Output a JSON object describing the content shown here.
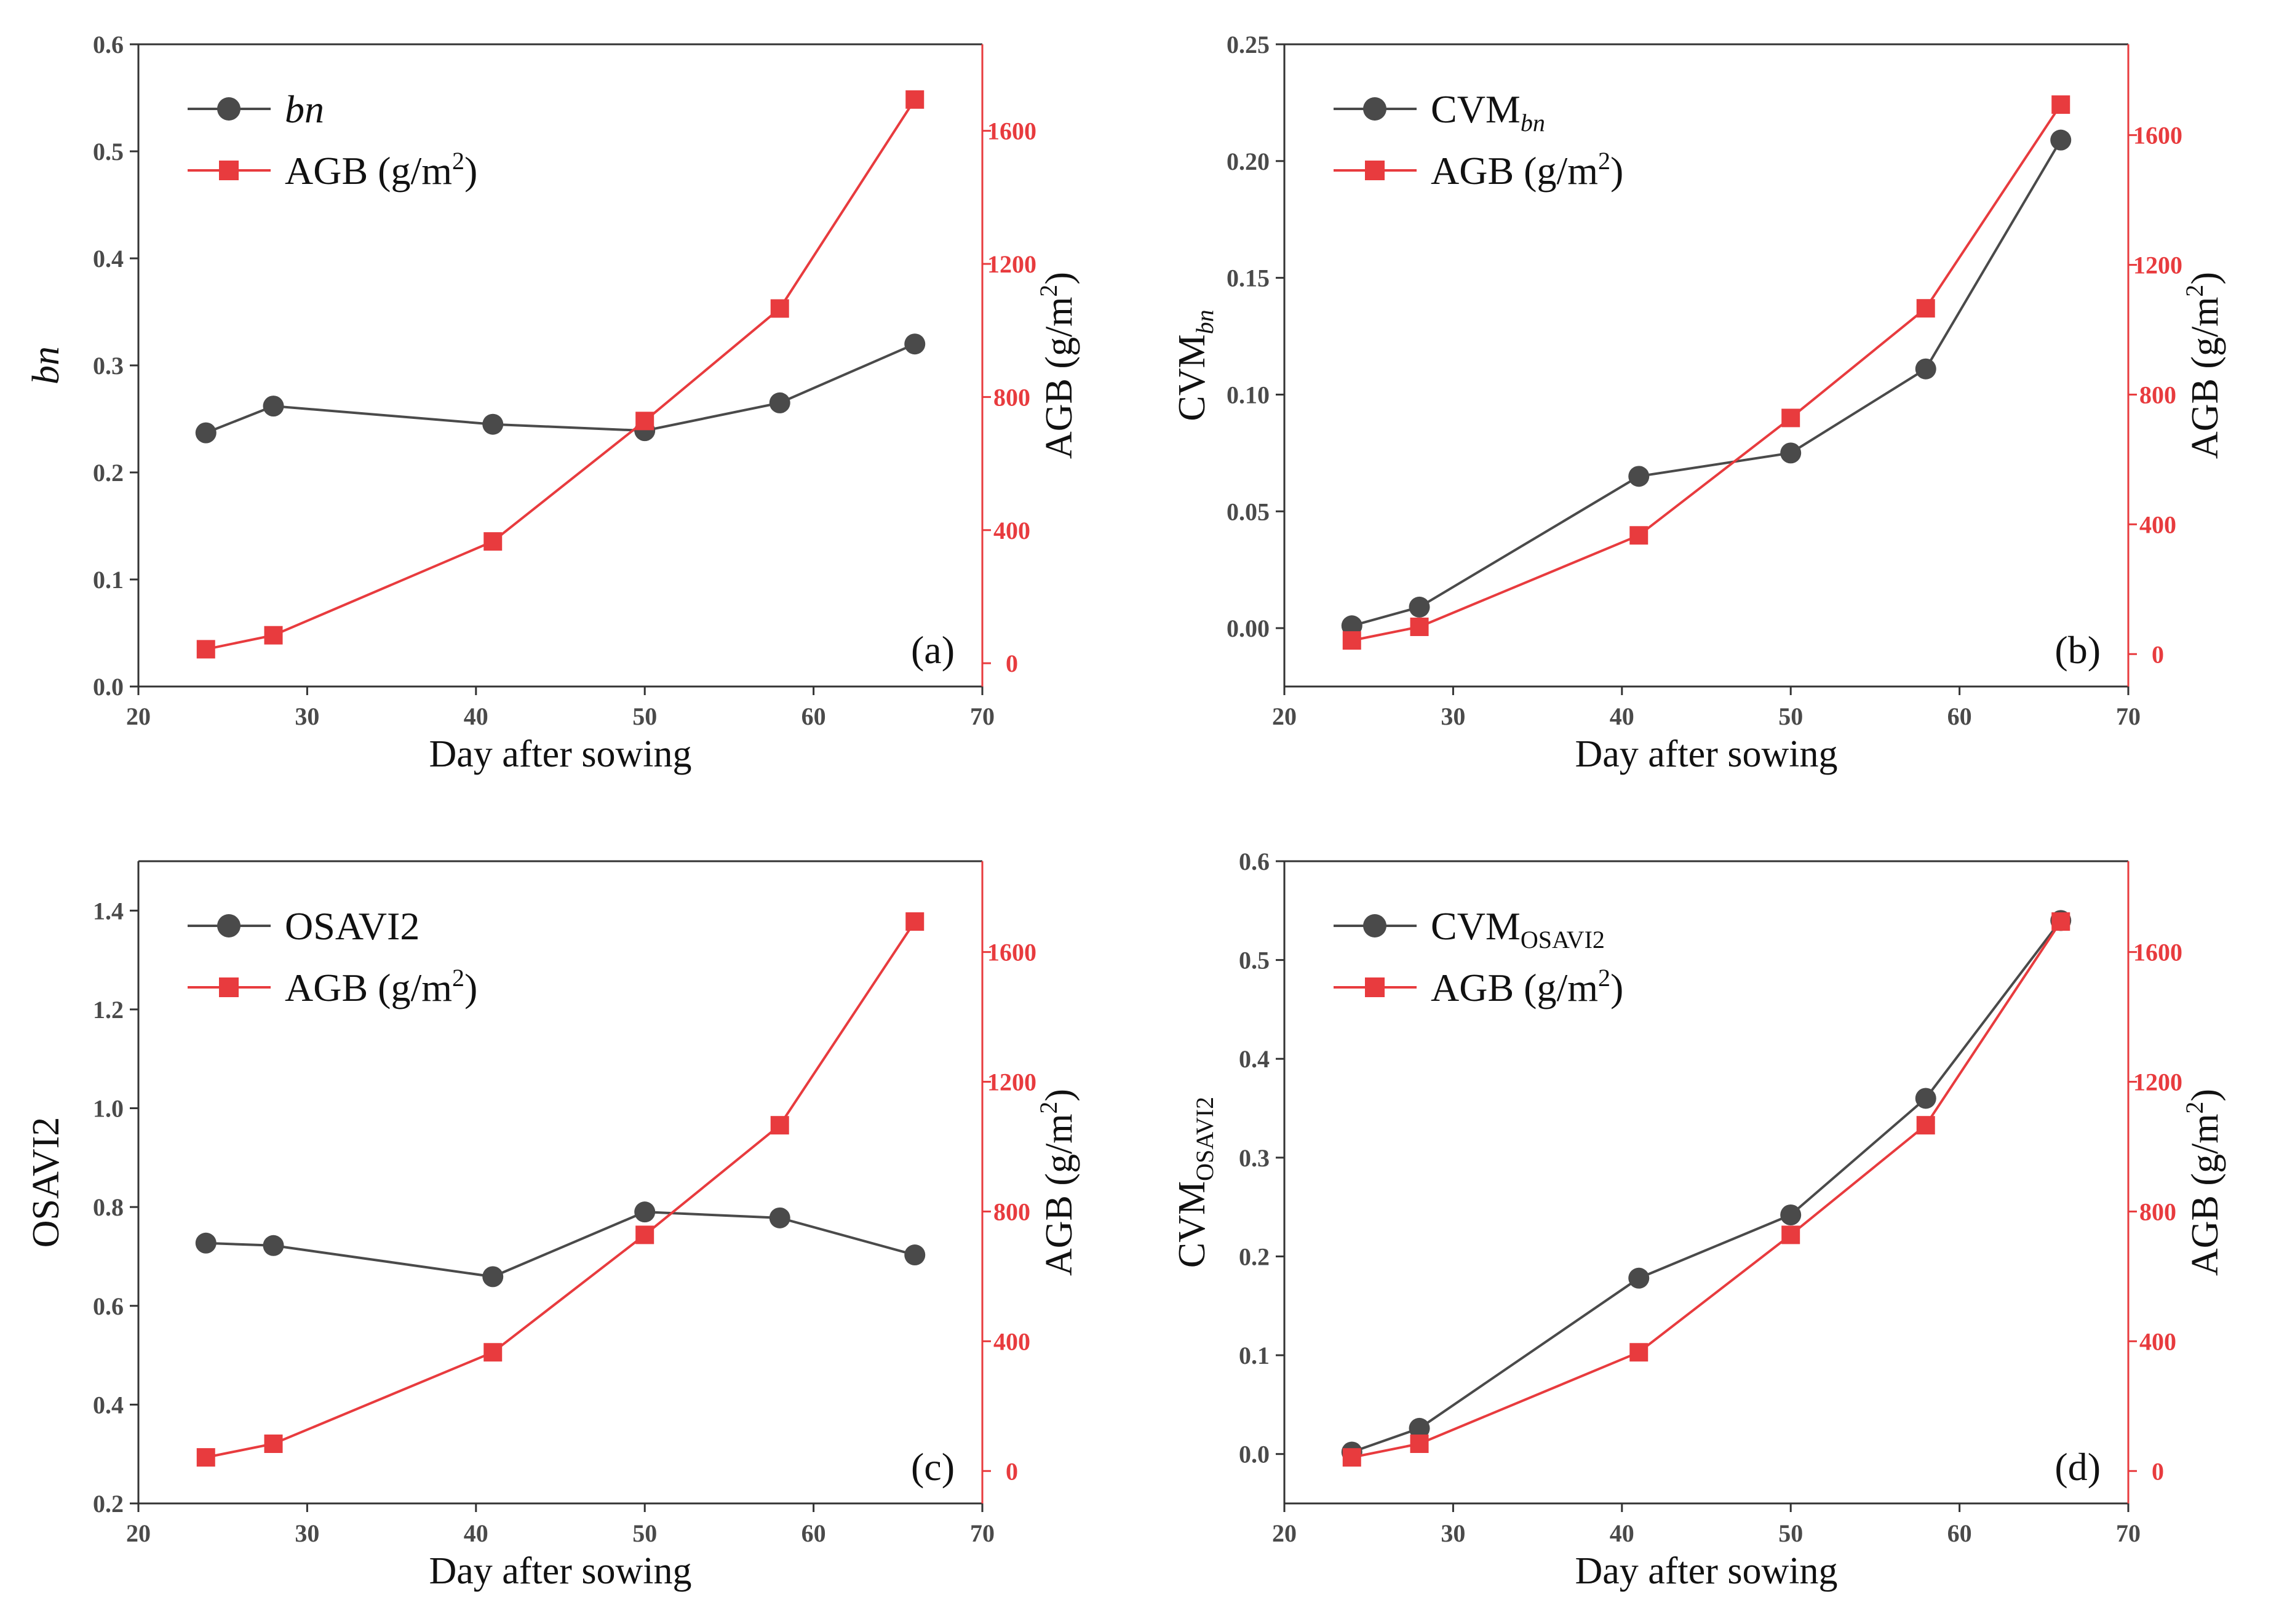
{
  "chart_data": [
    {
      "type": "line",
      "panel_label": "(a)",
      "xlabel": "Day after sowing",
      "ylabel_left": "bn",
      "ylabel_left_sub": "",
      "ylabel_right": "AGB (g/m",
      "ylabel_right_sup": "2",
      "ylabel_right_tail": ")",
      "xlim": [
        20,
        70
      ],
      "xticks": [
        20,
        30,
        40,
        50,
        60,
        70
      ],
      "ylim_left": [
        0,
        0.6
      ],
      "yticks_left": [
        0.0,
        0.1,
        0.2,
        0.3,
        0.4,
        0.5,
        0.6
      ],
      "ytick_left_labels": [
        "0.0",
        "0.1",
        "0.2",
        "0.3",
        "0.4",
        "0.5",
        "0.6"
      ],
      "ylim_right": [
        -70,
        1860
      ],
      "yticks_right": [
        0,
        400,
        800,
        1200,
        1600
      ],
      "ytick_right_labels": [
        "0",
        "400",
        "800",
        "1200",
        "1600"
      ],
      "legend": "top-left",
      "series": [
        {
          "name": "bn",
          "name_sub": "",
          "axis": "left",
          "marker": "circle",
          "color": "#4a4a4a",
          "x": [
            24,
            28,
            41,
            50,
            58,
            66
          ],
          "values": [
            0.237,
            0.262,
            0.245,
            0.239,
            0.265,
            0.32
          ]
        },
        {
          "name": "AGB (g/m",
          "name_sup": "2",
          "name_tail": ")",
          "axis": "right",
          "marker": "square",
          "color": "#e83b3e",
          "x": [
            24,
            28,
            41,
            50,
            58,
            66
          ],
          "values": [
            42,
            84,
            366,
            728,
            1066,
            1694
          ]
        }
      ]
    },
    {
      "type": "line",
      "panel_label": "(b)",
      "xlabel": "Day after sowing",
      "ylabel_left": "CVM",
      "ylabel_left_sub": "bn",
      "ylabel_right": "AGB (g/m",
      "ylabel_right_sup": "2",
      "ylabel_right_tail": ")",
      "xlim": [
        20,
        70
      ],
      "xticks": [
        20,
        30,
        40,
        50,
        60,
        70
      ],
      "ylim_left": [
        -0.025,
        0.25
      ],
      "yticks_left": [
        0.0,
        0.05,
        0.1,
        0.15,
        0.2,
        0.25
      ],
      "ytick_left_labels": [
        "0.00",
        "0.05",
        "0.10",
        "0.15",
        "0.20",
        "0.25"
      ],
      "ylim_right": [
        -100,
        1880
      ],
      "yticks_right": [
        0,
        400,
        800,
        1200,
        1600
      ],
      "ytick_right_labels": [
        "0",
        "400",
        "800",
        "1200",
        "1600"
      ],
      "legend": "top-left",
      "series": [
        {
          "name": "CVM",
          "name_sub": "bn",
          "axis": "left",
          "marker": "circle",
          "color": "#4a4a4a",
          "x": [
            24,
            28,
            41,
            50,
            58,
            66
          ],
          "values": [
            0.001,
            0.009,
            0.065,
            0.075,
            0.111,
            0.209
          ]
        },
        {
          "name": "AGB (g/m",
          "name_sup": "2",
          "name_tail": ")",
          "axis": "right",
          "marker": "square",
          "color": "#e83b3e",
          "x": [
            24,
            28,
            41,
            50,
            58,
            66
          ],
          "values": [
            42,
            84,
            366,
            728,
            1066,
            1694
          ]
        }
      ]
    },
    {
      "type": "line",
      "panel_label": "(c)",
      "xlabel": "Day after sowing",
      "ylabel_left": "OSAVI2",
      "ylabel_left_sub": "",
      "ylabel_right": "AGB (g/m",
      "ylabel_right_sup": "2",
      "ylabel_right_tail": ")",
      "xlim": [
        20,
        70
      ],
      "xticks": [
        20,
        30,
        40,
        50,
        60,
        70
      ],
      "ylim_left": [
        0.2,
        1.5
      ],
      "yticks_left": [
        0.2,
        0.4,
        0.6,
        0.8,
        1.0,
        1.2,
        1.4
      ],
      "ytick_left_labels": [
        "0.2",
        "0.4",
        "0.6",
        "0.8",
        "1.0",
        "1.2",
        "1.4"
      ],
      "ylim_right": [
        -100,
        1880
      ],
      "yticks_right": [
        0,
        400,
        800,
        1200,
        1600
      ],
      "ytick_right_labels": [
        "0",
        "400",
        "800",
        "1200",
        "1600"
      ],
      "legend": "top-left",
      "series": [
        {
          "name": "OSAVI2",
          "name_sub": "",
          "axis": "left",
          "marker": "circle",
          "color": "#4a4a4a",
          "x": [
            24,
            28,
            41,
            50,
            58,
            66
          ],
          "values": [
            0.727,
            0.722,
            0.659,
            0.79,
            0.778,
            0.703
          ]
        },
        {
          "name": "AGB (g/m",
          "name_sup": "2",
          "name_tail": ")",
          "axis": "right",
          "marker": "square",
          "color": "#e83b3e",
          "x": [
            24,
            28,
            41,
            50,
            58,
            66
          ],
          "values": [
            42,
            84,
            366,
            728,
            1066,
            1694
          ]
        }
      ]
    },
    {
      "type": "line",
      "panel_label": "(d)",
      "xlabel": "Day after sowing",
      "ylabel_left": "CVM",
      "ylabel_left_sub": "OSAVI2",
      "ylabel_right": "AGB (g/m",
      "ylabel_right_sup": "2",
      "ylabel_right_tail": ")",
      "xlim": [
        20,
        70
      ],
      "xticks": [
        20,
        30,
        40,
        50,
        60,
        70
      ],
      "ylim_left": [
        -0.05,
        0.6
      ],
      "yticks_left": [
        0.0,
        0.1,
        0.2,
        0.3,
        0.4,
        0.5,
        0.6
      ],
      "ytick_left_labels": [
        "0.0",
        "0.1",
        "0.2",
        "0.3",
        "0.4",
        "0.5",
        "0.6"
      ],
      "ylim_right": [
        -100,
        1880
      ],
      "yticks_right": [
        0,
        400,
        800,
        1200,
        1600
      ],
      "ytick_right_labels": [
        "0",
        "400",
        "800",
        "1200",
        "1600"
      ],
      "legend": "top-left",
      "series": [
        {
          "name": "CVM",
          "name_sub": "OSAVI2",
          "axis": "left",
          "marker": "circle",
          "color": "#4a4a4a",
          "x": [
            24,
            28,
            41,
            50,
            58,
            66
          ],
          "values": [
            0.002,
            0.026,
            0.178,
            0.242,
            0.36,
            0.54
          ]
        },
        {
          "name": "AGB (g/m",
          "name_sup": "2",
          "name_tail": ")",
          "axis": "right",
          "marker": "square",
          "color": "#e83b3e",
          "x": [
            24,
            28,
            41,
            50,
            58,
            66
          ],
          "values": [
            42,
            84,
            366,
            728,
            1066,
            1694
          ]
        }
      ]
    }
  ]
}
